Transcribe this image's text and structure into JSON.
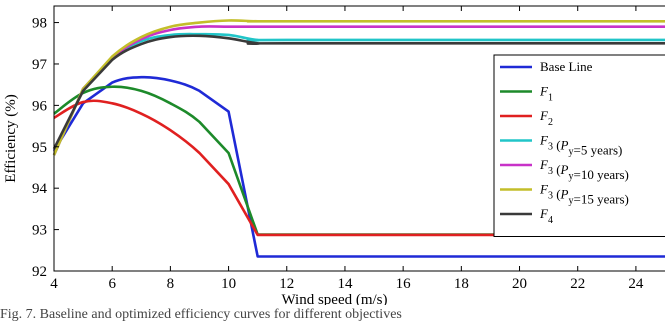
{
  "chart_data": {
    "type": "line",
    "title": "",
    "xlabel": "Wind speed (m/s)",
    "ylabel": "Efficiency (%)",
    "xlim": [
      4,
      25
    ],
    "ylim": [
      92,
      98.4
    ],
    "xticks": [
      "4",
      "6",
      "8",
      "10",
      "12",
      "14",
      "16",
      "18",
      "20",
      "22",
      "24"
    ],
    "xtick_values": [
      4,
      6,
      8,
      10,
      12,
      14,
      16,
      18,
      20,
      22,
      24
    ],
    "yticks": [
      "92",
      "93",
      "94",
      "95",
      "96",
      "97",
      "98"
    ],
    "ytick_values": [
      92,
      93,
      94,
      95,
      96,
      97,
      98
    ],
    "grid": false,
    "legend_position": "right",
    "series": [
      {
        "name": "Base Line",
        "color": "#1f2ad6",
        "x": [
          4,
          5,
          6,
          7,
          8,
          9,
          10,
          11,
          12,
          25
        ],
        "y": [
          94.9,
          96.05,
          96.55,
          96.68,
          96.6,
          96.35,
          95.85,
          92.35,
          92.35,
          92.35
        ]
      },
      {
        "name": "F_1",
        "color": "#1d8a2a",
        "x": [
          4,
          5,
          6,
          7,
          8,
          9,
          10,
          11,
          12,
          25
        ],
        "y": [
          95.8,
          96.3,
          96.45,
          96.35,
          96.05,
          95.6,
          94.85,
          92.88,
          92.88,
          92.88
        ]
      },
      {
        "name": "F_2",
        "color": "#e02020",
        "x": [
          4,
          5,
          6,
          7,
          8,
          9,
          10,
          11,
          12,
          25
        ],
        "y": [
          95.7,
          96.08,
          96.05,
          95.8,
          95.4,
          94.85,
          94.1,
          92.87,
          92.87,
          92.87
        ]
      },
      {
        "name": "F_3 (P_y=5 years)",
        "color": "#21c5c8",
        "x": [
          4,
          5,
          6,
          7,
          8,
          9,
          10,
          11,
          12,
          25
        ],
        "y": [
          94.8,
          96.4,
          97.15,
          97.55,
          97.7,
          97.72,
          97.7,
          97.58,
          97.58,
          97.58
        ]
      },
      {
        "name": "F_3 (P_y=10 years)",
        "color": "#c832c8",
        "x": [
          4,
          5,
          6,
          7,
          8,
          9,
          10,
          11,
          12,
          25
        ],
        "y": [
          94.8,
          96.4,
          97.15,
          97.6,
          97.82,
          97.9,
          97.9,
          97.9,
          97.9,
          97.9
        ]
      },
      {
        "name": "F_3 (P_y=15 years)",
        "color": "#c3be2a",
        "x": [
          4,
          5,
          6,
          7,
          8,
          9,
          10,
          11,
          12,
          25
        ],
        "y": [
          94.8,
          96.4,
          97.18,
          97.65,
          97.9,
          98.0,
          98.05,
          98.03,
          98.03,
          98.03
        ]
      },
      {
        "name": "F_4",
        "color": "#3a3a3a",
        "x": [
          4,
          5,
          6,
          7,
          8,
          9,
          10,
          11,
          12,
          25
        ],
        "y": [
          94.95,
          96.35,
          97.1,
          97.48,
          97.65,
          97.68,
          97.62,
          97.5,
          97.5,
          97.5
        ]
      }
    ],
    "legend_labels": [
      {
        "main": "Base Line"
      },
      {
        "main": "F",
        "sub": "1"
      },
      {
        "main": "F",
        "sub": "2"
      },
      {
        "main": "F",
        "sub": "3",
        "rest": " (P",
        "rest_sub": "y",
        "tail": "=5 years)"
      },
      {
        "main": "F",
        "sub": "3",
        "rest": " (P",
        "rest_sub": "y",
        "tail": "=10 years)"
      },
      {
        "main": "F",
        "sub": "3",
        "rest": " (P",
        "rest_sub": "y",
        "tail": "=15 years)"
      },
      {
        "main": "F",
        "sub": "4"
      }
    ]
  },
  "caption": "Fig. 7.   Baseline and optimized efficiency curves for different objectives"
}
